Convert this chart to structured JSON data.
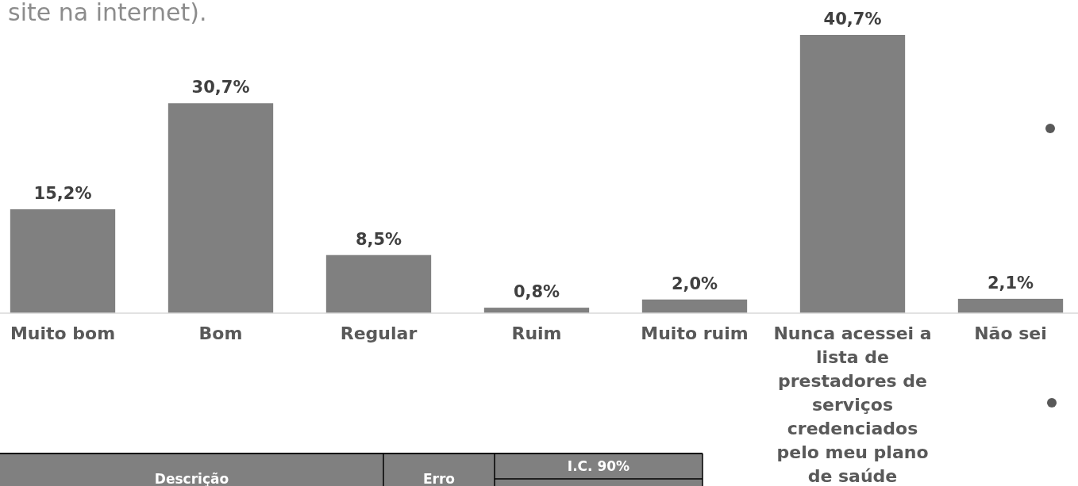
{
  "chart_data": {
    "type": "bar",
    "title": "site na internet).",
    "categories": [
      "Muito bom",
      "Bom",
      "Regular",
      "Ruim",
      "Muito ruim",
      "Nunca acessei a lista de prestadores de serviços credenciados pelo meu plano de saúde",
      "Não sei"
    ],
    "values": [
      15.2,
      30.7,
      8.5,
      0.8,
      2.0,
      40.7,
      2.1
    ],
    "value_labels": [
      "15,2%",
      "30,7%",
      "8,5%",
      "0,8%",
      "2,0%",
      "40,7%",
      "2,1%"
    ],
    "color": "#808080",
    "tick_labels": "x",
    "annotations": [
      "Descrição",
      "Erro",
      "I.C. 90%"
    ]
  }
}
